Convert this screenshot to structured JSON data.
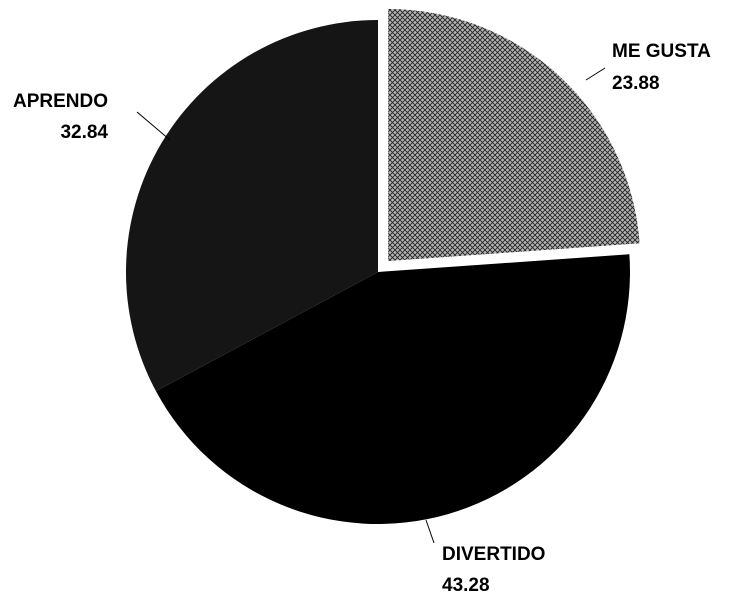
{
  "chart_data": {
    "type": "pie",
    "categories": [
      "ME GUSTA",
      "DIVERTIDO",
      "APRENDO"
    ],
    "values": [
      23.88,
      43.28,
      32.84
    ],
    "colors": [
      "#b4b4b4",
      "#000000",
      "#151515"
    ],
    "exploded": [
      "ME GUSTA"
    ]
  }
}
